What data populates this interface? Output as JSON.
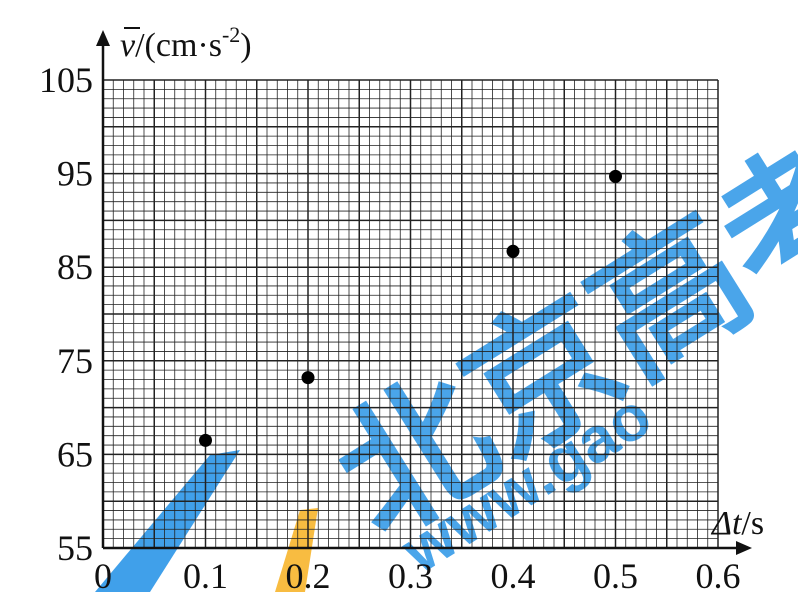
{
  "chart_data": {
    "type": "scatter",
    "title": "",
    "xlabel_var": "Δt",
    "xlabel_unit": "/s",
    "ylabel_var": "v",
    "ylabel_unit": "/(cm·s",
    "ylabel_exp": "-2",
    "ylabel_close": ")",
    "xlim": [
      0,
      0.6
    ],
    "ylim": [
      55,
      105
    ],
    "x_ticks": [
      "0",
      "0.1",
      "0.2",
      "0.3",
      "0.4",
      "0.5",
      "0.6"
    ],
    "y_ticks": [
      "55",
      "65",
      "75",
      "85",
      "95",
      "105"
    ],
    "grid": true,
    "points": [
      {
        "x": 0.1,
        "y": 66.5
      },
      {
        "x": 0.2,
        "y": 73.2
      },
      {
        "x": 0.4,
        "y": 86.7
      },
      {
        "x": 0.5,
        "y": 94.7
      }
    ]
  },
  "watermark": {
    "text_cn": "北京高考",
    "text_url": "www.gao",
    "color": "#1e8fe6",
    "accent": "#f7b52c"
  }
}
